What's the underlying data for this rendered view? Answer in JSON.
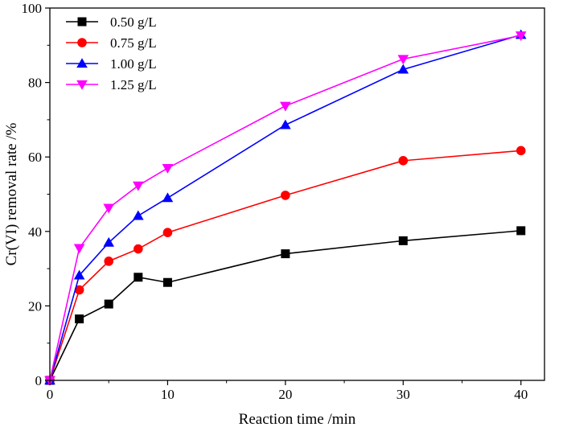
{
  "chart_data": {
    "type": "line",
    "title": "",
    "xlabel": "Reaction time /min",
    "ylabel": "Cr(VI) removal rate /%",
    "xlim": [
      0,
      42
    ],
    "ylim": [
      0,
      100
    ],
    "xticks": [
      0,
      10,
      20,
      30,
      40
    ],
    "yticks": [
      0,
      20,
      40,
      60,
      80,
      100
    ],
    "legend_position": "top-left",
    "x": [
      0,
      2.5,
      5,
      7.5,
      10,
      20,
      30,
      40
    ],
    "series": [
      {
        "name": "0.50 g/L",
        "color": "#000000",
        "marker": "square",
        "values": [
          0,
          16.5,
          20.5,
          27.7,
          26.3,
          34.0,
          37.5,
          40.2
        ]
      },
      {
        "name": "0.75 g/L",
        "color": "#ff0000",
        "marker": "circle",
        "values": [
          0,
          24.3,
          32.0,
          35.3,
          39.7,
          49.7,
          59.0,
          61.7
        ]
      },
      {
        "name": "1.00 g/L",
        "color": "#0000ff",
        "marker": "triangle-up",
        "values": [
          0,
          28.2,
          37.0,
          44.2,
          49.0,
          68.6,
          83.5,
          92.8
        ]
      },
      {
        "name": "1.25 g/L",
        "color": "#ff00ff",
        "marker": "triangle-down",
        "values": [
          0,
          35.5,
          46.3,
          52.3,
          57.0,
          73.7,
          86.3,
          92.6
        ]
      }
    ]
  }
}
